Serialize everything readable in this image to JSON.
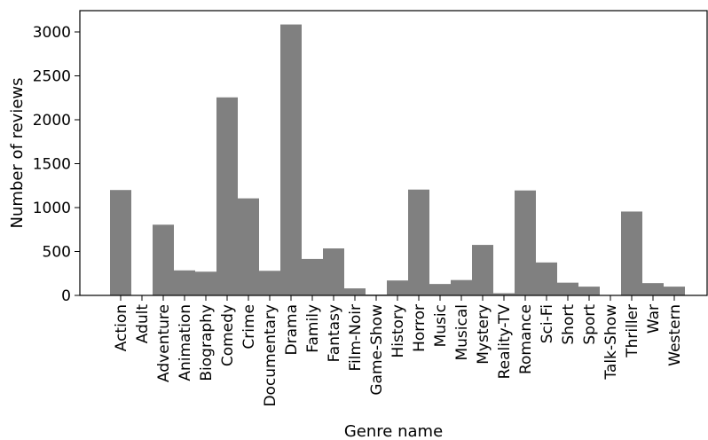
{
  "chart_data": {
    "type": "bar",
    "title": "",
    "xlabel": "Genre name",
    "ylabel": "Number of reviews",
    "ylim": [
      0,
      3200
    ],
    "yticks": [
      0,
      500,
      1000,
      1500,
      2000,
      2500,
      3000
    ],
    "grid": false,
    "bar_color": "#808080",
    "categories": [
      "Action",
      "Adult",
      "Adventure",
      "Animation",
      "Biography",
      "Comedy",
      "Crime",
      "Documentary",
      "Drama",
      "Family",
      "Fantasy",
      "Film-Noir",
      "Game-Show",
      "History",
      "Horror",
      "Music",
      "Musical",
      "Mystery",
      "Reality-TV",
      "Romance",
      "Sci-Fi",
      "Short",
      "Sport",
      "Talk-Show",
      "Thriller",
      "War",
      "Western"
    ],
    "values": [
      1200,
      0,
      805,
      285,
      270,
      2255,
      1105,
      280,
      3085,
      415,
      535,
      80,
      10,
      170,
      1205,
      130,
      175,
      575,
      25,
      1195,
      375,
      145,
      100,
      0,
      955,
      140,
      100
    ]
  }
}
